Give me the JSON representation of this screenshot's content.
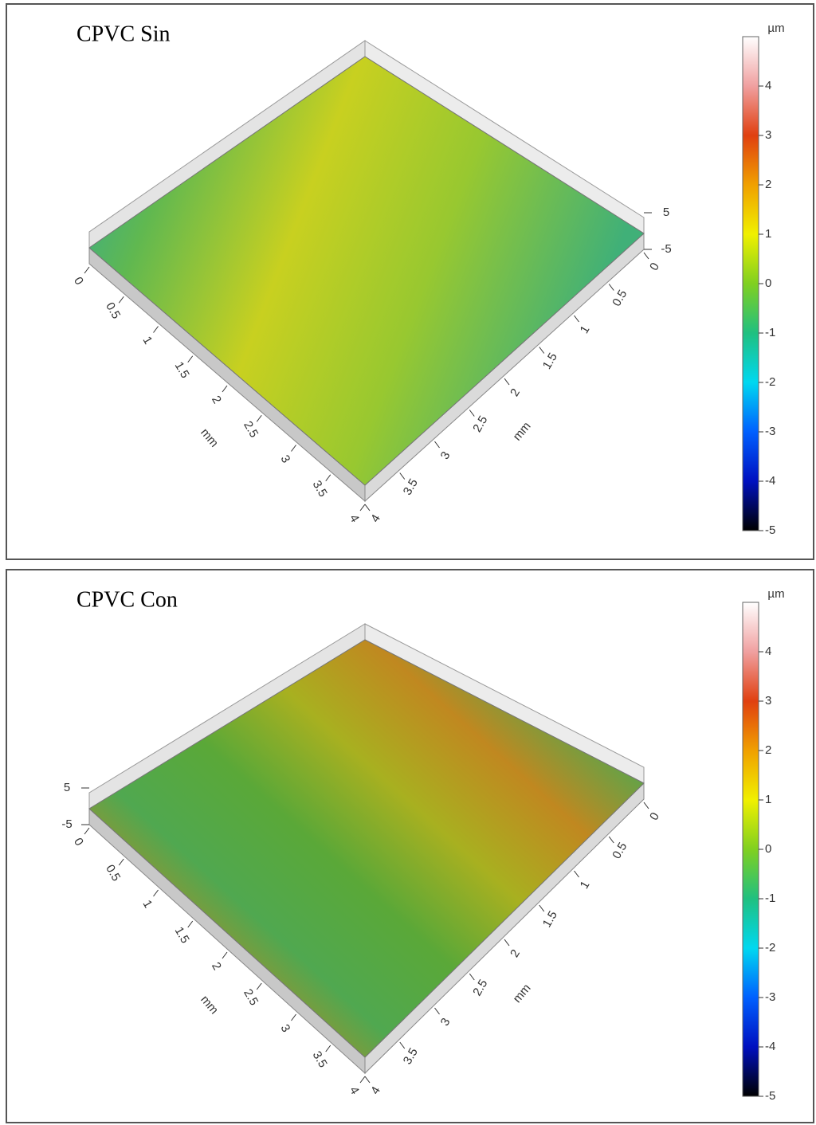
{
  "panels": [
    {
      "title": "CPVC Sin",
      "colorbar": {
        "unit": "µm",
        "ticks": [
          4,
          3,
          2,
          1,
          0,
          -1,
          -2,
          -3,
          -4,
          -5
        ]
      },
      "z_ticks": [
        5,
        -5
      ],
      "x_axis": {
        "label": "mm",
        "ticks": [
          0,
          0.5,
          1,
          1.5,
          2,
          2.5,
          3,
          3.5,
          4
        ]
      },
      "y_axis": {
        "label": "mm",
        "ticks": [
          0,
          0.5,
          1,
          1.5,
          2,
          2.5,
          3,
          3.5,
          4
        ]
      }
    },
    {
      "title": "CPVC Con",
      "colorbar": {
        "unit": "µm",
        "ticks": [
          4,
          3,
          2,
          1,
          0,
          -1,
          -2,
          -3,
          -4,
          -5
        ]
      },
      "z_ticks": [
        5,
        -5
      ],
      "x_axis": {
        "label": "mm",
        "ticks": [
          0,
          0.5,
          1,
          1.5,
          2,
          2.5,
          3,
          3.5,
          4
        ]
      },
      "y_axis": {
        "label": "mm",
        "ticks": [
          0,
          0.5,
          1,
          1.5,
          2,
          2.5,
          3,
          3.5,
          4
        ]
      }
    }
  ]
}
